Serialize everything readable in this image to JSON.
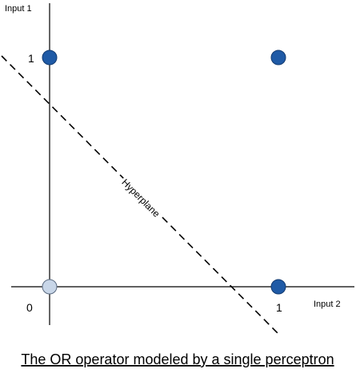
{
  "axes": {
    "y_title": "Input 1",
    "x_title": "Input 2",
    "y_tick": "1",
    "x_tick": "1",
    "origin_tick": "0"
  },
  "points": [
    {
      "input2": 0,
      "input1": 1,
      "active": true
    },
    {
      "input2": 1,
      "input1": 1,
      "active": true
    },
    {
      "input2": 0,
      "input1": 0,
      "active": false
    },
    {
      "input2": 1,
      "input1": 0,
      "active": true
    }
  ],
  "hyperplane": {
    "label": "Hyperplane"
  },
  "colors": {
    "active_fill": "#1f5aa6",
    "active_stroke": "#123a70",
    "inactive_fill": "#c8d6e8",
    "inactive_stroke": "#5a6a80",
    "axis": "#000000",
    "hyperplane": "#000000"
  },
  "caption": "The OR operator modeled by a single perceptron"
}
